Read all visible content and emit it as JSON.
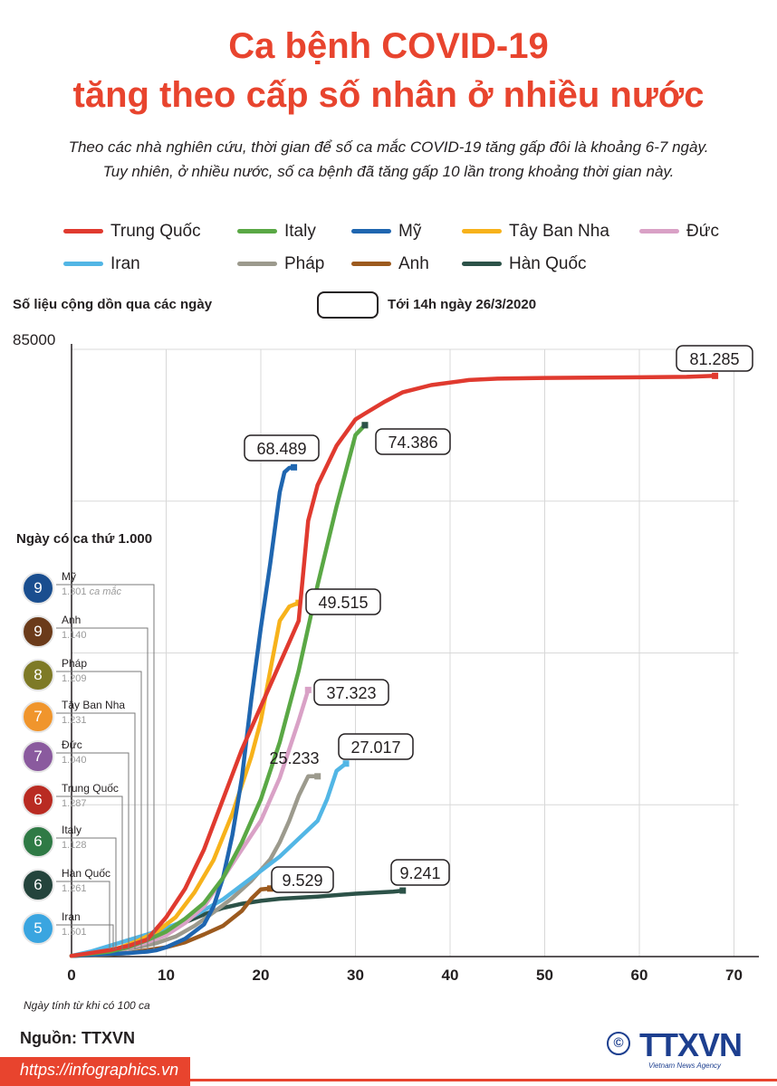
{
  "title_line1": "Ca bệnh COVID-19",
  "title_line2": "tăng theo cấp số nhân ở nhiều nước",
  "subtitle_line1": "Theo các nhà nghiên cứu, thời gian để số ca mắc COVID-19 tăng gấp đôi là khoảng 6-7 ngày.",
  "subtitle_line2": "Tuy nhiên, ở nhiều nước, số ca bệnh đã tăng gấp 10 lần trong khoảng thời gian này.",
  "cumulative_label": "Số liệu cộng dồn qua các ngày",
  "as_of_label": "Tới 14h ngày 26/3/2020",
  "first1000_title": "Ngày có ca thứ 1.000",
  "source": "Nguồn: TTXVN",
  "url": "https://infographics.vn",
  "logo_text": "TTXVN",
  "logo_sub": "Vietnam News Agency",
  "copyright": "©",
  "colors": {
    "accent": "#e8442e",
    "trung_quoc": "#e03a2f",
    "italy": "#5aa845",
    "my": "#1f66b0",
    "tay_ban_nha": "#f7b21b",
    "duc": "#d9a1c6",
    "iran": "#52b6e5",
    "phap": "#9c9a8d",
    "anh": "#9c5a1e",
    "han_quoc": "#2c5248"
  },
  "first1000": [
    {
      "day": "9",
      "country": "Mỹ",
      "cases": "1.301",
      "note": "ca mắc",
      "color": "#1a4e8f"
    },
    {
      "day": "9",
      "country": "Anh",
      "cases": "1.140",
      "note": "",
      "color": "#6b3b1a"
    },
    {
      "day": "8",
      "country": "Pháp",
      "cases": "1.209",
      "note": "",
      "color": "#7e7a26"
    },
    {
      "day": "7",
      "country": "Tây Ban Nha",
      "cases": "1.231",
      "note": "",
      "color": "#f0952c"
    },
    {
      "day": "7",
      "country": "Đức",
      "cases": "1.040",
      "note": "",
      "color": "#8a5a9e"
    },
    {
      "day": "6",
      "country": "Trung Quốc",
      "cases": "1.287",
      "note": "",
      "color": "#b92b22"
    },
    {
      "day": "6",
      "country": "Italy",
      "cases": "1.128",
      "note": "",
      "color": "#2f7a45"
    },
    {
      "day": "6",
      "country": "Hàn Quốc",
      "cases": "1.261",
      "note": "",
      "color": "#24443c"
    },
    {
      "day": "5",
      "country": "Iran",
      "cases": "1.501",
      "note": "",
      "color": "#3aa5e0"
    }
  ],
  "chart_data": {
    "type": "line",
    "title": "",
    "xlabel": "Ngày tính từ khi có 100 ca",
    "ylabel": "",
    "xlim": [
      0,
      70
    ],
    "ylim": [
      0,
      85000
    ],
    "xticks": [
      0,
      10,
      20,
      30,
      40,
      50,
      60,
      70
    ],
    "yticks_labeled": [
      85000
    ],
    "grid": true,
    "legend_position": "top",
    "series": [
      {
        "name": "Trung Quốc",
        "color": "#e03a2f",
        "end_label": "81.285",
        "x": [
          0,
          2,
          4,
          6,
          8,
          10,
          12,
          14,
          16,
          18,
          20,
          22,
          23,
          24,
          25,
          26,
          28,
          30,
          31,
          33,
          35,
          38,
          42,
          45,
          50,
          55,
          60,
          65,
          68
        ],
        "y": [
          100,
          500,
          900,
          1500,
          2400,
          5500,
          9500,
          15000,
          22000,
          29000,
          35000,
          41000,
          44000,
          47000,
          61000,
          66000,
          71500,
          75200,
          76000,
          77600,
          79000,
          80000,
          80700,
          80900,
          81000,
          81050,
          81080,
          81150,
          81285
        ]
      },
      {
        "name": "Italy",
        "color": "#5aa845",
        "x": [
          0,
          4,
          6,
          8,
          10,
          12,
          14,
          16,
          18,
          20,
          22,
          24,
          26,
          28,
          30,
          31
        ],
        "y": [
          100,
          700,
          1300,
          2300,
          3500,
          5300,
          7500,
          11000,
          16000,
          22000,
          30000,
          40000,
          52000,
          63000,
          73000,
          74386
        ]
      },
      {
        "name": "Mỹ",
        "color": "#1f66b0",
        "end_label": "68.489",
        "x": [
          0,
          6,
          8,
          9,
          10,
          12,
          14,
          15,
          16,
          17,
          18,
          19,
          20,
          21,
          22,
          22.5,
          23,
          23.5
        ],
        "y": [
          100,
          500,
          700,
          900,
          1300,
          2500,
          4500,
          7000,
          11000,
          17000,
          25000,
          36000,
          46000,
          55000,
          65000,
          67800,
          68400,
          68489
        ]
      },
      {
        "name": "Tây Ban Nha",
        "color": "#f7b21b",
        "end_label": "49.515",
        "x": [
          0,
          3,
          5,
          7,
          9,
          11,
          13,
          15,
          17,
          19,
          20,
          21,
          22,
          23,
          24
        ],
        "y": [
          100,
          600,
          1200,
          2200,
          3500,
          5500,
          9000,
          13500,
          20000,
          28000,
          33000,
          40000,
          47000,
          49000,
          49515
        ]
      },
      {
        "name": "Đức",
        "color": "#d9a1c6",
        "end_label": "37.323",
        "x": [
          0,
          4,
          6,
          8,
          10,
          12,
          14,
          16,
          18,
          20,
          22,
          24,
          25
        ],
        "y": [
          100,
          700,
          1200,
          2000,
          3000,
          4700,
          7000,
          11000,
          15000,
          19000,
          25000,
          33000,
          37323
        ]
      },
      {
        "name": "Iran",
        "color": "#52b6e5",
        "end_label": "27.017",
        "x": [
          0,
          2,
          4,
          6,
          8,
          10,
          12,
          14,
          16,
          18,
          20,
          22,
          24,
          26,
          27,
          28,
          29
        ],
        "y": [
          100,
          700,
          1500,
          2300,
          3100,
          4000,
          5000,
          6500,
          8000,
          10000,
          12000,
          14000,
          16500,
          19000,
          22000,
          26000,
          27017
        ]
      },
      {
        "name": "Pháp",
        "color": "#9c9a8d",
        "end_label": "25.233",
        "x": [
          0,
          3,
          5,
          7,
          9,
          11,
          13,
          15,
          17,
          19,
          21,
          22,
          23,
          24,
          25,
          26
        ],
        "y": [
          100,
          500,
          900,
          1300,
          1900,
          2800,
          4300,
          6200,
          8200,
          10600,
          13600,
          16000,
          19000,
          22500,
          25233,
          25233
        ]
      },
      {
        "name": "Anh",
        "color": "#9c5a1e",
        "end_label": "9.529",
        "x": [
          0,
          4,
          6,
          8,
          10,
          12,
          14,
          16,
          18,
          19,
          20,
          21
        ],
        "y": [
          100,
          300,
          500,
          900,
          1300,
          2000,
          3100,
          4300,
          6400,
          8100,
          9400,
          9529
        ]
      },
      {
        "name": "Hàn Quốc",
        "color": "#2c5248",
        "end_label": "9.241",
        "x": [
          0,
          2,
          4,
          6,
          8,
          10,
          12,
          14,
          16,
          18,
          20,
          22,
          26,
          30,
          34,
          35
        ],
        "y": [
          100,
          300,
          700,
          1300,
          2200,
          3500,
          4800,
          5900,
          6800,
          7400,
          7800,
          8100,
          8400,
          8800,
          9100,
          9241
        ]
      }
    ]
  }
}
